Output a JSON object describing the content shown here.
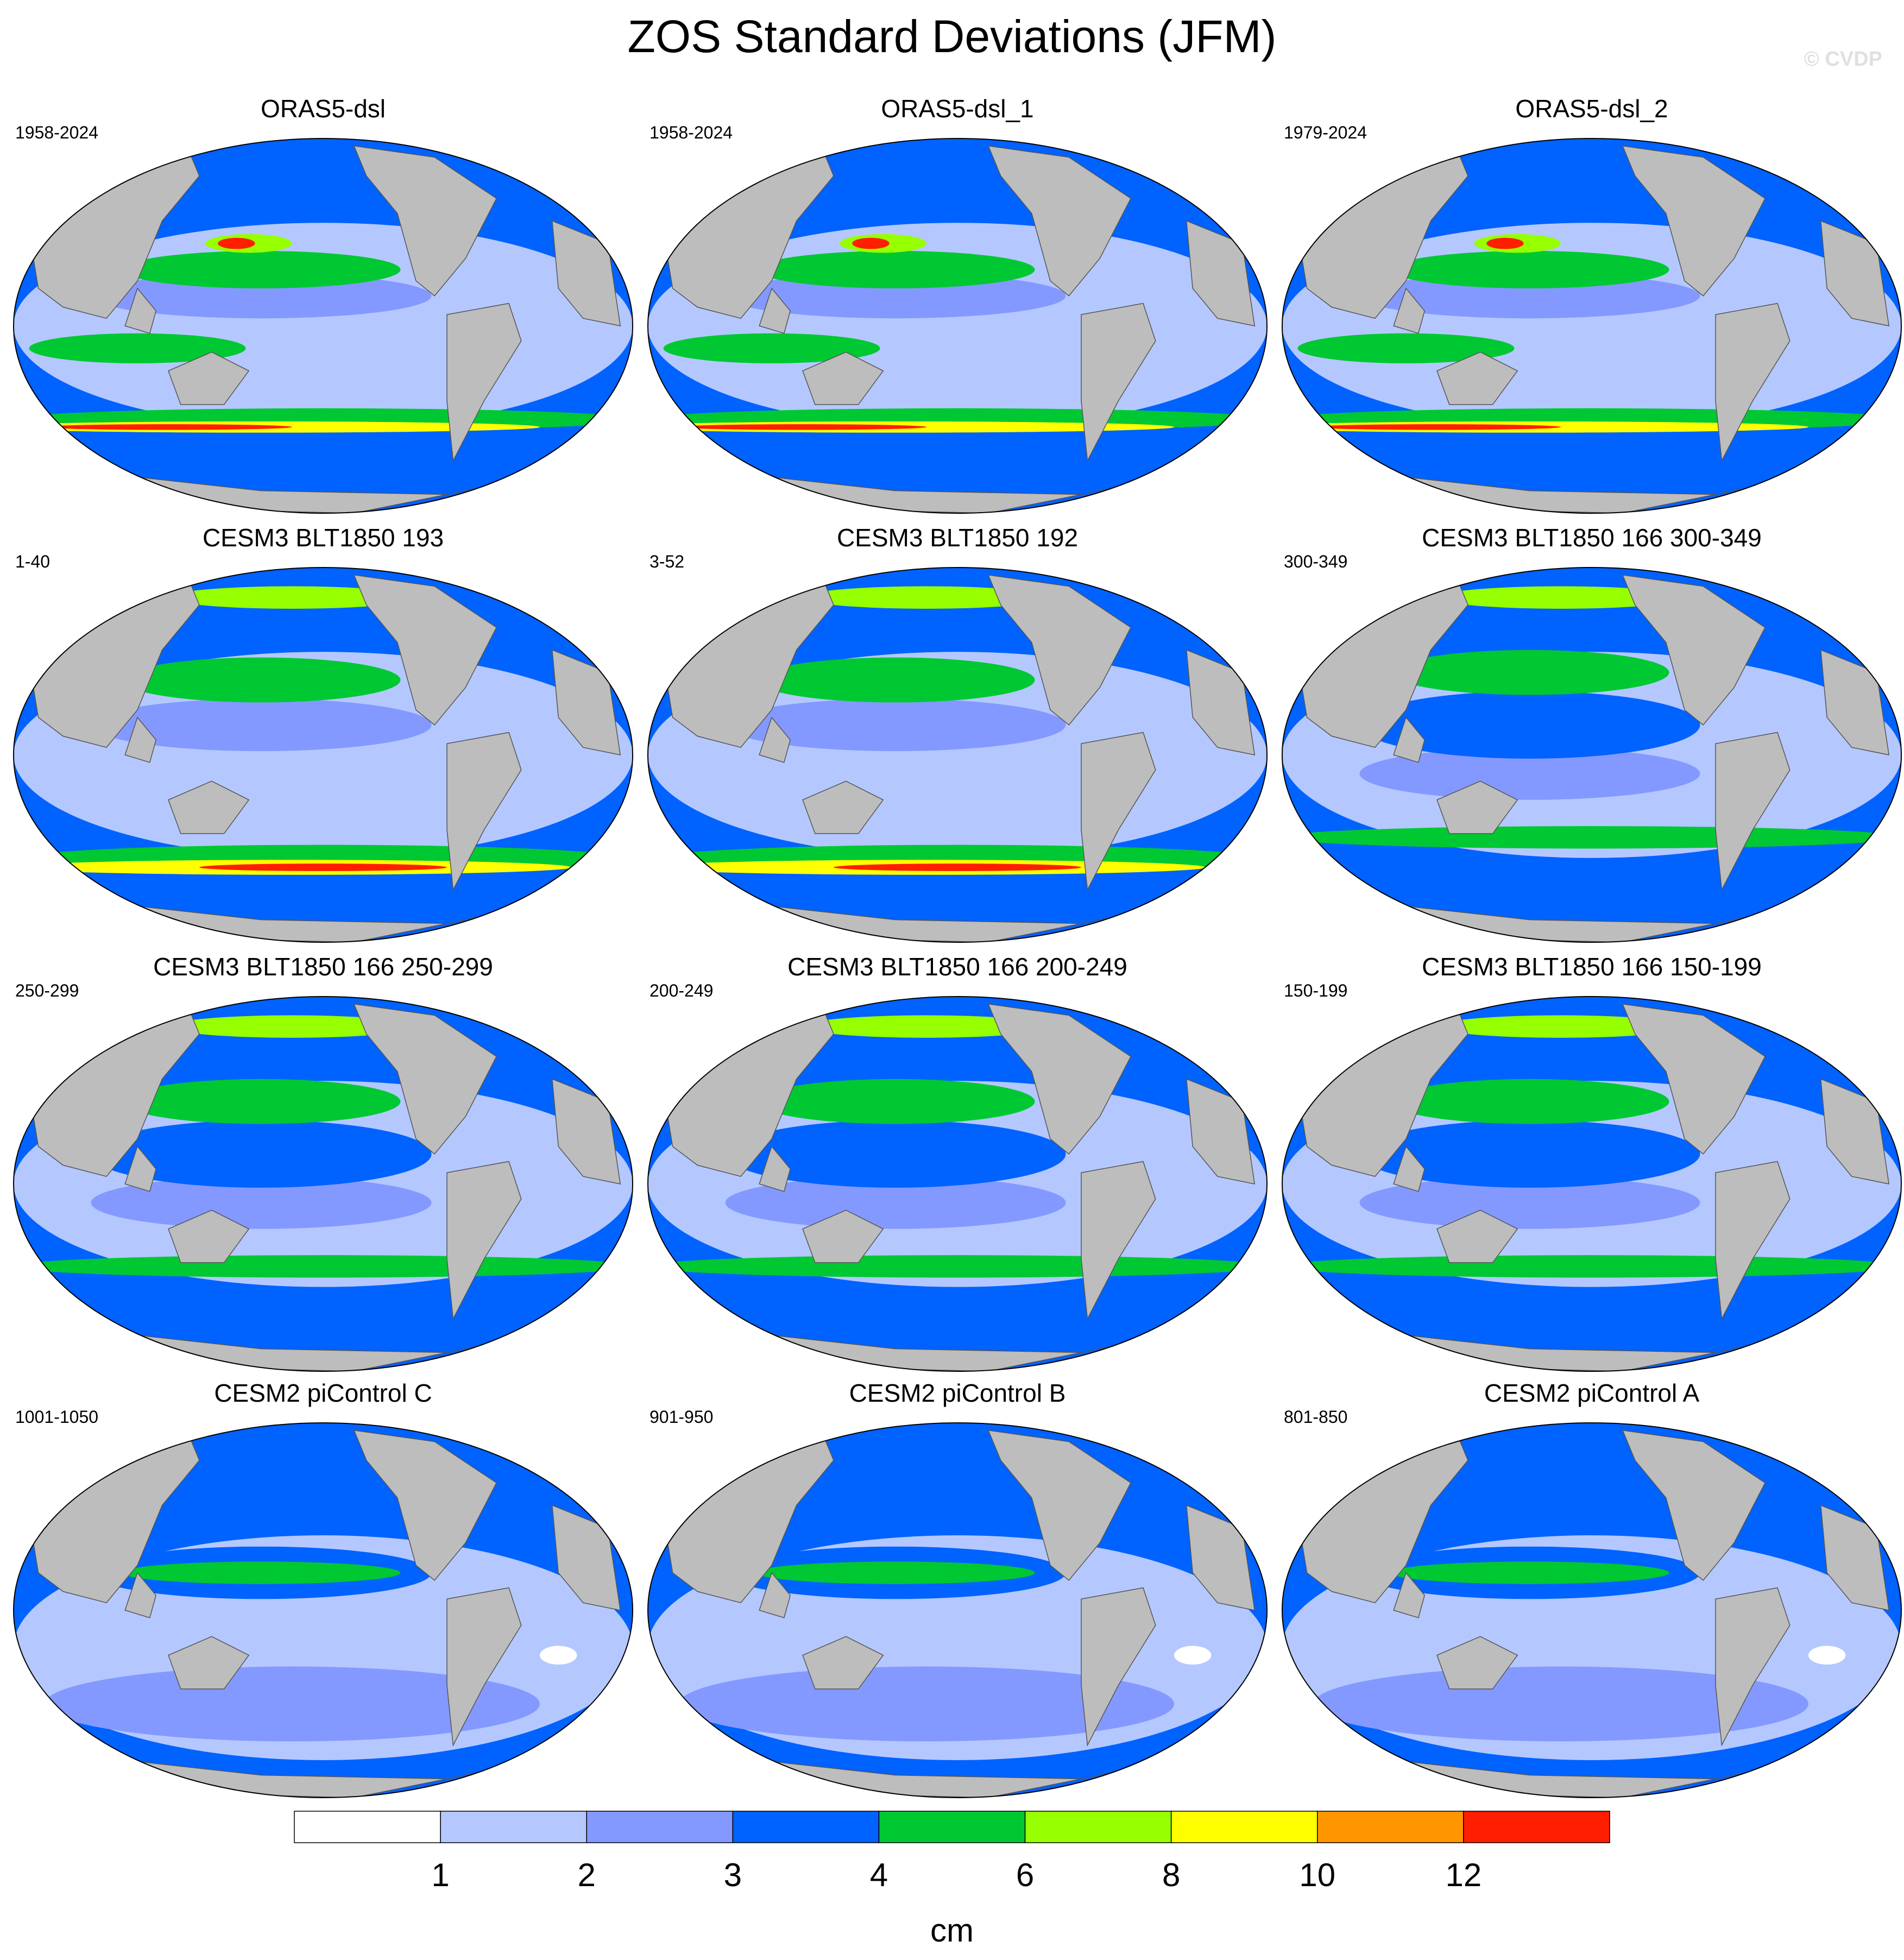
{
  "title": "ZOS Standard Deviations (JFM)",
  "watermark": "© CVDP",
  "panels": [
    {
      "title": "ORAS5-dsl",
      "years": "1958-2024",
      "pattern": "oras"
    },
    {
      "title": "ORAS5-dsl_1",
      "years": "1958-2024",
      "pattern": "oras"
    },
    {
      "title": "ORAS5-dsl_2",
      "years": "1979-2024",
      "pattern": "oras"
    },
    {
      "title": "CESM3 BLT1850 193",
      "years": "1-40",
      "pattern": "cesm3-strong"
    },
    {
      "title": "CESM3 BLT1850 192",
      "years": "3-52",
      "pattern": "cesm3-strong"
    },
    {
      "title": "CESM3 BLT1850 166 300-349",
      "years": "300-349",
      "pattern": "cesm3"
    },
    {
      "title": "CESM3 BLT1850 166 250-299",
      "years": "250-299",
      "pattern": "cesm3"
    },
    {
      "title": "CESM3 BLT1850 166 200-249",
      "years": "200-249",
      "pattern": "cesm3"
    },
    {
      "title": "CESM3 BLT1850 166 150-199",
      "years": "150-199",
      "pattern": "cesm3"
    },
    {
      "title": "CESM2 piControl C",
      "years": "1001-1050",
      "pattern": "cesm2"
    },
    {
      "title": "CESM2 piControl B",
      "years": "901-950",
      "pattern": "cesm2"
    },
    {
      "title": "CESM2 piControl A",
      "years": "801-850",
      "pattern": "cesm2"
    }
  ],
  "legend": {
    "unit": "cm",
    "levels": [
      1,
      2,
      3,
      4,
      6,
      8,
      10,
      12
    ],
    "colors": [
      "#ffffff",
      "#b4c8ff",
      "#8499ff",
      "#0062ff",
      "#00c832",
      "#96ff00",
      "#ffff00",
      "#ff9600",
      "#ff1e00"
    ]
  },
  "land_color": "#bdbdbd"
}
